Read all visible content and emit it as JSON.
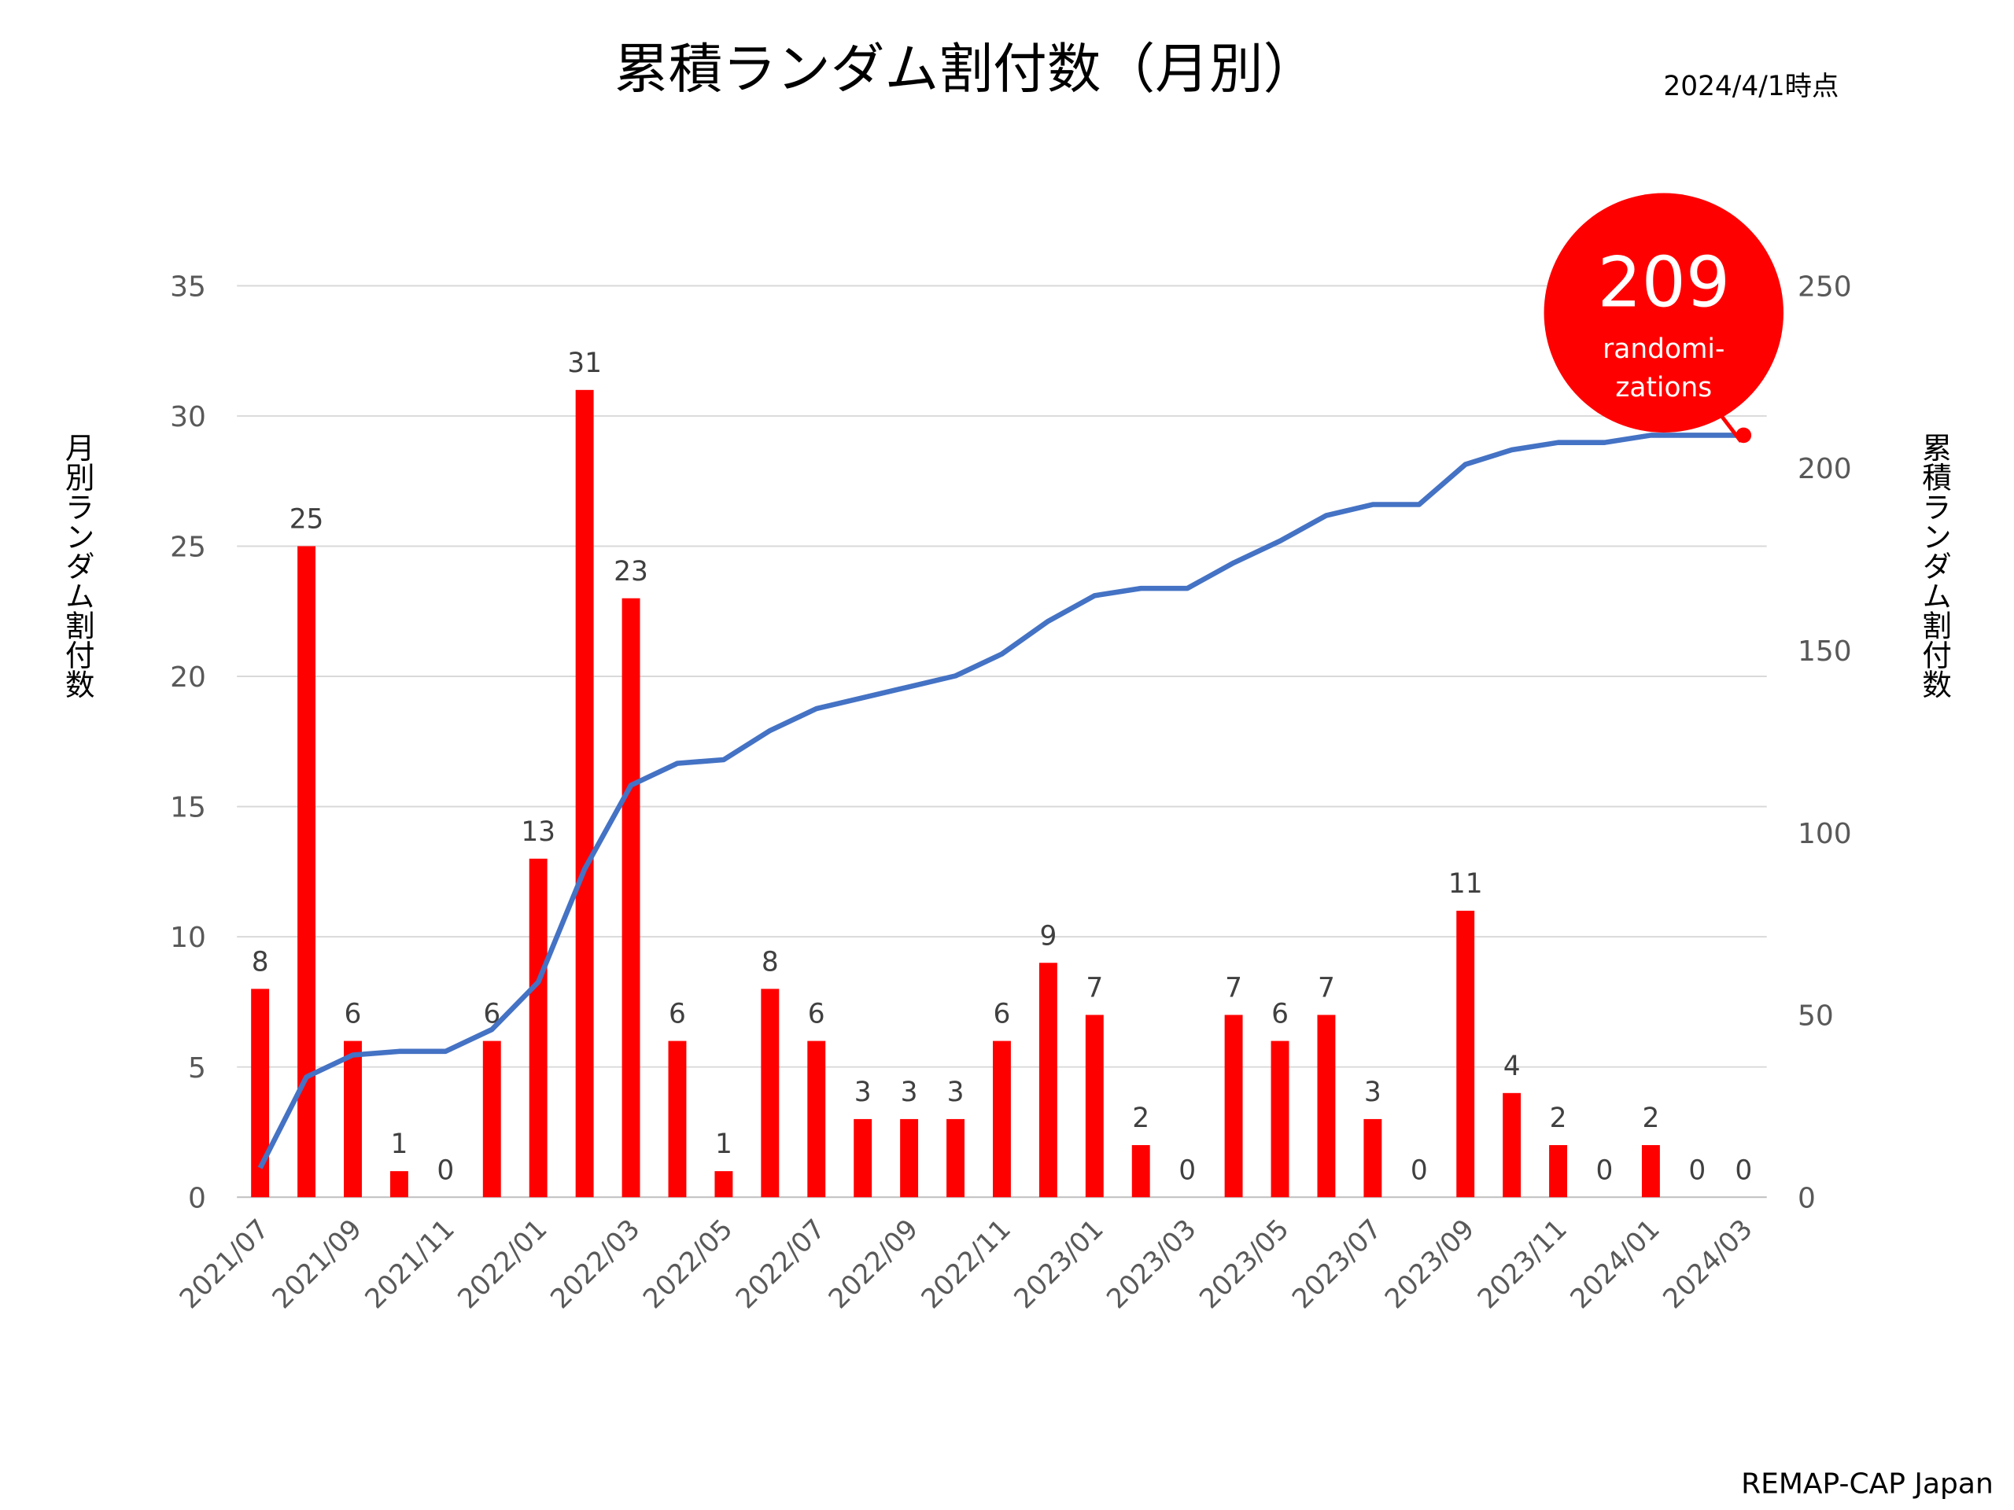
{
  "chart_data": {
    "type": "bar+line",
    "title": "累積ランダム割付数（月別）",
    "as_of": "2024/4/1時点",
    "credit": "REMAP-CAP Japan",
    "y_left_label": "月別ランダム割付数",
    "y_right_label": "累積ランダム割付数",
    "y_left_range": [
      0,
      35
    ],
    "y_left_ticks": [
      "0",
      "5",
      "10",
      "15",
      "20",
      "25",
      "30",
      "35"
    ],
    "y_right_range": [
      0,
      250
    ],
    "y_right_ticks": [
      "0",
      "50",
      "100",
      "150",
      "200",
      "250"
    ],
    "categories": [
      "2021/07",
      "2021/08",
      "2021/09",
      "2021/10",
      "2021/11",
      "2021/12",
      "2022/01",
      "2022/02",
      "2022/03",
      "2022/04",
      "2022/05",
      "2022/06",
      "2022/07",
      "2022/08",
      "2022/09",
      "2022/10",
      "2022/11",
      "2022/12",
      "2023/01",
      "2023/02",
      "2023/03",
      "2023/04",
      "2023/05",
      "2023/06",
      "2023/07",
      "2023/08",
      "2023/09",
      "2023/10",
      "2023/11",
      "2023/12",
      "2024/01",
      "2024/02",
      "2024/03"
    ],
    "x_tick_labels": [
      "2021/07",
      "2021/09",
      "2021/11",
      "2022/01",
      "2022/03",
      "2022/05",
      "2022/07",
      "2022/09",
      "2022/11",
      "2023/01",
      "2023/03",
      "2023/05",
      "2023/07",
      "2023/09",
      "2023/11",
      "2024/01",
      "2024/03"
    ],
    "series": [
      {
        "name": "月別ランダム割付数",
        "type": "bar",
        "color": "#ff0000",
        "values": [
          8,
          25,
          6,
          1,
          0,
          6,
          13,
          31,
          23,
          6,
          1,
          8,
          6,
          3,
          3,
          3,
          6,
          9,
          7,
          2,
          0,
          7,
          6,
          7,
          3,
          0,
          11,
          4,
          2,
          0,
          2,
          0,
          0
        ]
      },
      {
        "name": "累積ランダム割付数",
        "type": "line",
        "color": "#4472c4",
        "values": [
          8,
          33,
          39,
          40,
          40,
          46,
          59,
          90,
          113,
          119,
          120,
          128,
          134,
          137,
          140,
          143,
          149,
          158,
          165,
          167,
          167,
          174,
          180,
          187,
          190,
          190,
          201,
          205,
          207,
          207,
          209,
          209,
          209
        ]
      }
    ],
    "callout": {
      "value": "209",
      "line1": "randomi-",
      "line2": "zations",
      "color": "#ff0000"
    }
  }
}
